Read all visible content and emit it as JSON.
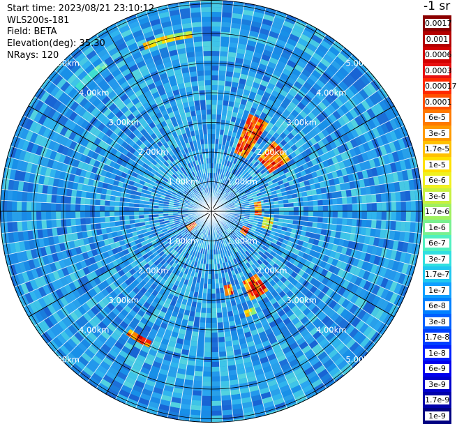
{
  "header": {
    "start_time": "Start time: 2023/08/21 23:10:12",
    "instrument": "WLS200s-181",
    "field": "Field: BETA",
    "elevation": "Elevation(deg): 35.30",
    "nrays": "NRays: 120"
  },
  "units_label": "-1 sr",
  "range_rings": [
    "1.00km",
    "2.00km",
    "3.00km",
    "4.00km",
    "5.00km"
  ],
  "colorbar": {
    "labels": [
      "0.0017",
      "0.001",
      "0.0006",
      "0.0003",
      "0.00017",
      "0.0001",
      "6e-5",
      "3e-5",
      "1.7e-5",
      "1e-5",
      "6e-6",
      "3e-6",
      "1.7e-6",
      "1e-6",
      "6e-7",
      "3e-7",
      "1.7e-7",
      "1e-7",
      "6e-8",
      "3e-8",
      "1.7e-8",
      "1e-8",
      "6e-9",
      "3e-9",
      "1.7e-9",
      "1e-9"
    ],
    "colors": [
      "#8b0000",
      "#b40000",
      "#d20000",
      "#e81010",
      "#ff2a00",
      "#ff5000",
      "#ff7a00",
      "#ff9a00",
      "#ffc000",
      "#ffe000",
      "#f0f020",
      "#c8f040",
      "#a0f060",
      "#78f090",
      "#50f0c0",
      "#30e0e0",
      "#20c8f0",
      "#10a0ff",
      "#0080ff",
      "#0060ff",
      "#0040ff",
      "#0020ff",
      "#0000ee",
      "#0000cc",
      "#0000aa",
      "#000080"
    ]
  }
}
